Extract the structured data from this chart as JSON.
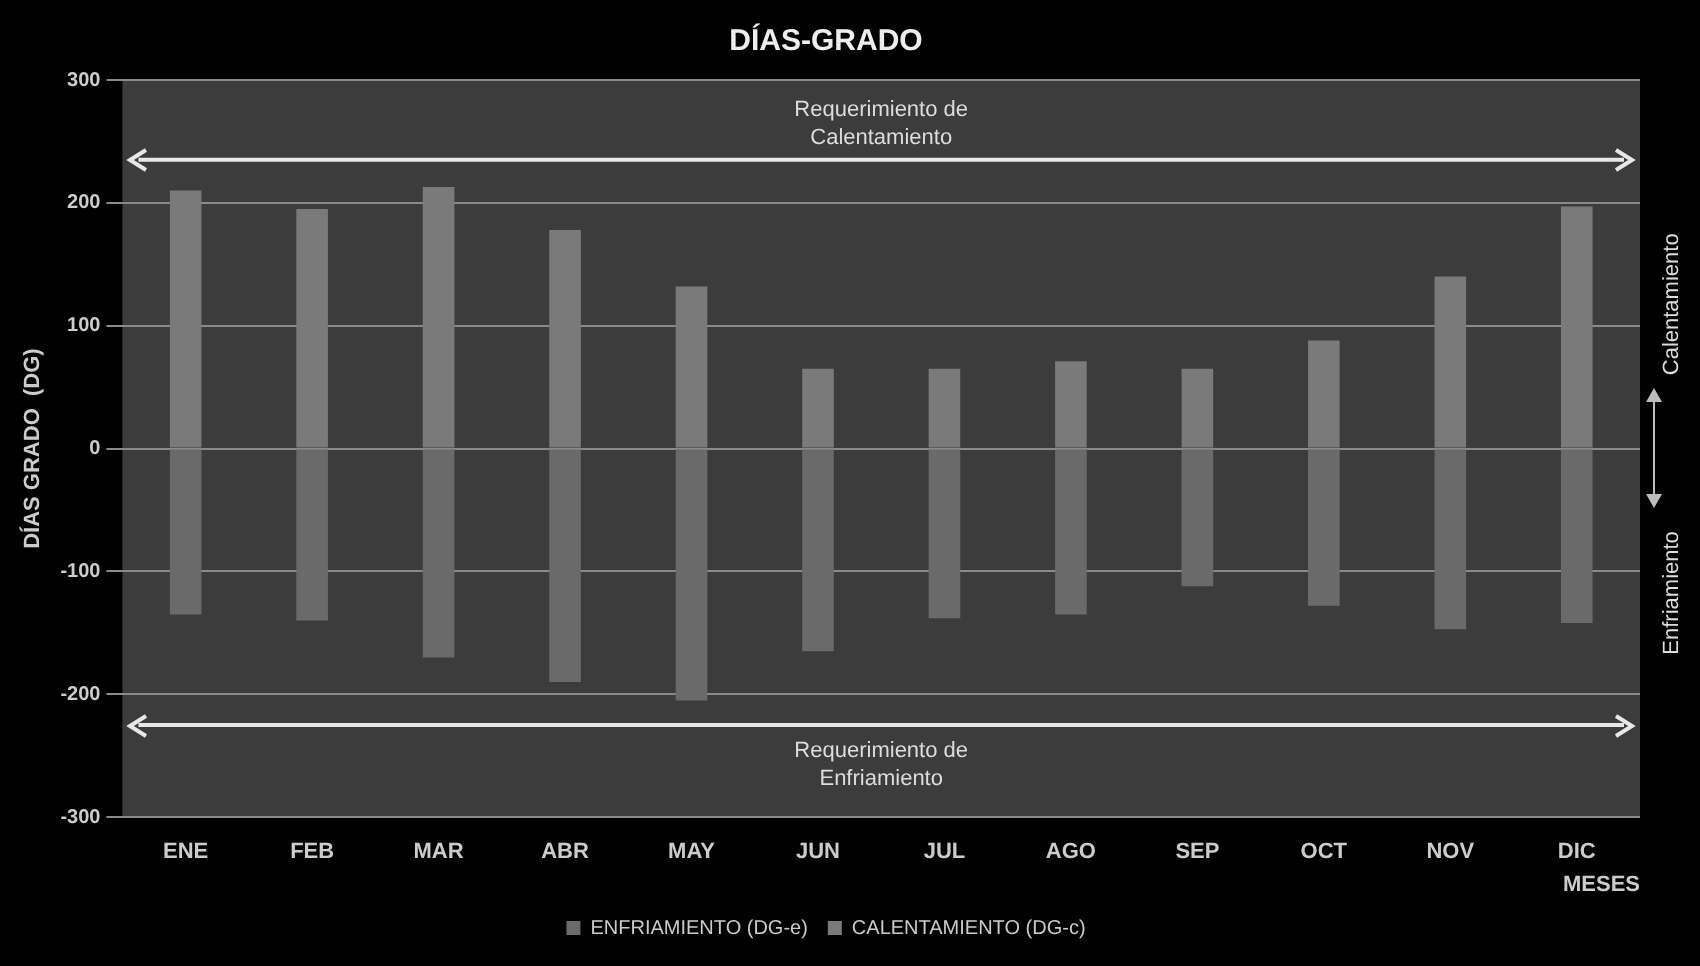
{
  "chart_data": {
    "type": "bar",
    "title": "DÍAS-GRADO",
    "ylabel": "DÍAS GRADO  (DG)",
    "xlabel": "MESES",
    "categories": [
      "ENE",
      "FEB",
      "MAR",
      "ABR",
      "MAY",
      "JUN",
      "JUL",
      "AGO",
      "SEP",
      "OCT",
      "NOV",
      "DIC"
    ],
    "series": [
      {
        "name": "ENFRIAMIENTO (DG-e)",
        "color": "#6a6a6a",
        "values": [
          -135,
          -140,
          -170,
          -190,
          -205,
          -165,
          -138,
          -135,
          -112,
          -128,
          -147,
          -142
        ]
      },
      {
        "name": "CALENTAMIENTO (DG-c)",
        "color": "#7a7a7a",
        "values": [
          210,
          195,
          213,
          178,
          132,
          65,
          65,
          71,
          65,
          88,
          140,
          197
        ]
      }
    ],
    "stacked": true,
    "ylim": [
      -300,
      300
    ],
    "yticks": [
      -300,
      -200,
      -100,
      0,
      100,
      200,
      300
    ],
    "grid": "y",
    "legend": "bottom",
    "ref_lines": [
      {
        "axis": "y",
        "value": 235,
        "label": "Requerimiento de Calentamiento",
        "color": "#e8e8e8"
      },
      {
        "axis": "y",
        "value": -225,
        "label": "Requerimiento de Enfriamiento",
        "color": "#e8e8e8"
      }
    ],
    "annotations": [
      "Calentamiento",
      "Enfriamiento"
    ]
  }
}
